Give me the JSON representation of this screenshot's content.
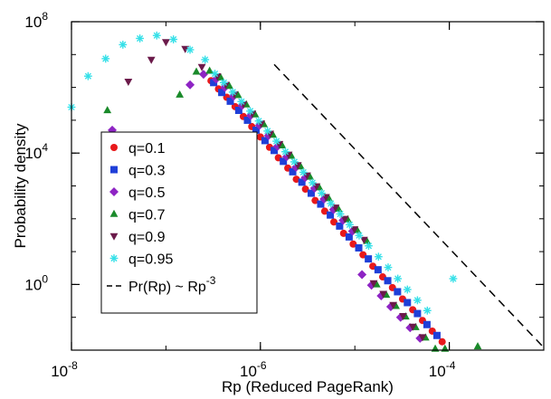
{
  "chart_data": {
    "type": "scatter",
    "xlabel": "Rp (Reduced PageRank)",
    "ylabel": "Probability density",
    "xscale": "log",
    "yscale": "log",
    "xlim": [
      1e-08,
      0.001
    ],
    "ylim": [
      0.01,
      100000000.0
    ],
    "xticks": [
      {
        "base": "10",
        "exp": "-8",
        "value": 1e-08
      },
      {
        "base": "10",
        "exp": "-6",
        "value": 1e-06
      },
      {
        "base": "10",
        "exp": "-4",
        "value": 0.0001
      }
    ],
    "yticks": [
      {
        "base": "10",
        "exp": "0",
        "value": 1
      },
      {
        "base": "10",
        "exp": "4",
        "value": 10000.0
      },
      {
        "base": "10",
        "exp": "8",
        "value": 100000000.0
      }
    ],
    "legend_position": "left",
    "series": [
      {
        "name": "q=0.1",
        "marker": "circle",
        "color": "#e8191b",
        "points": [
          [
            3e-07,
            1600000.0
          ],
          [
            3.6e-07,
            900000.0
          ],
          [
            4.4e-07,
            500000.0
          ],
          [
            5.4e-07,
            260000.0
          ],
          [
            6.6e-07,
            130000.0
          ],
          [
            8.1e-07,
            64000.0
          ],
          [
            1e-06,
            31000.0
          ],
          [
            1.25e-06,
            15000.0
          ],
          [
            1.55e-06,
            7200.0
          ],
          [
            1.95e-06,
            3500.0
          ],
          [
            2.4e-06,
            1600.0
          ],
          [
            3e-06,
            800.0
          ],
          [
            3.8e-06,
            360.0
          ],
          [
            4.8e-06,
            170.0
          ],
          [
            6e-06,
            80.0
          ],
          [
            7.6e-06,
            36.0
          ],
          [
            9.6e-06,
            17.0
          ],
          [
            1.22e-05,
            8
          ],
          [
            1.55e-05,
            3.6
          ],
          [
            1.97e-05,
            1.7
          ],
          [
            2.5e-05,
            0.8
          ],
          [
            3.2e-05,
            0.36
          ],
          [
            4.1e-05,
            0.17
          ],
          [
            5.2e-05,
            0.08
          ],
          [
            6.6e-05,
            0.038
          ],
          [
            8.4e-05,
            0.018
          ]
        ]
      },
      {
        "name": "q=0.3",
        "marker": "square",
        "color": "#1f3fd8",
        "points": [
          [
            3.2e-07,
            1400000.0
          ],
          [
            3.9e-07,
            700000.0
          ],
          [
            4.8e-07,
            380000.0
          ],
          [
            5.9e-07,
            200000.0
          ],
          [
            7.3e-07,
            100000.0
          ],
          [
            9e-07,
            50000.0
          ],
          [
            1.12e-06,
            24000.0
          ],
          [
            1.4e-06,
            12000.0
          ],
          [
            1.75e-06,
            5600.0
          ],
          [
            2.2e-06,
            2700.0
          ],
          [
            2.75e-06,
            1300.0
          ],
          [
            3.45e-06,
            600.0
          ],
          [
            4.35e-06,
            280.0
          ],
          [
            5.5e-06,
            130.0
          ],
          [
            6.9e-06,
            60.0
          ],
          [
            8.7e-06,
            28.0
          ],
          [
            1.1e-05,
            13.0
          ],
          [
            1.39e-05,
            6
          ],
          [
            1.76e-05,
            2.8
          ],
          [
            2.23e-05,
            1.3
          ],
          [
            2.83e-05,
            0.6
          ],
          [
            3.6e-05,
            0.28
          ],
          [
            4.6e-05,
            0.13
          ],
          [
            5.8e-05,
            0.06
          ],
          [
            7.4e-05,
            0.028
          ]
        ]
      },
      {
        "name": "q=0.5",
        "marker": "diamond",
        "color": "#8e24c4",
        "points": [
          [
            2.7e-08,
            50000.0
          ],
          [
            1.8e-07,
            1200000.0
          ],
          [
            2.5e-07,
            2500000.0
          ],
          [
            3.4e-07,
            1800000.0
          ],
          [
            4.2e-07,
            1000000.0
          ],
          [
            5.2e-07,
            540000.0
          ],
          [
            6.4e-07,
            280000.0
          ],
          [
            7.9e-07,
            140000.0
          ],
          [
            9.8e-07,
            70000.0
          ],
          [
            1.22e-06,
            34000.0
          ],
          [
            1.52e-06,
            16000.0
          ],
          [
            1.9e-06,
            7800.0
          ],
          [
            2.38e-06,
            3700.0
          ],
          [
            2.98e-06,
            1800.0
          ],
          [
            3.75e-06,
            850.0
          ],
          [
            4.72e-06,
            400.0
          ],
          [
            5.95e-06,
            190.0
          ],
          [
            7.5e-06,
            90.0
          ],
          [
            9.45e-06,
            42.0
          ],
          [
            1.19e-05,
            2
          ],
          [
            1.5e-05,
            0.95
          ],
          [
            1.9e-05,
            0.45
          ],
          [
            2.4e-05,
            0.21
          ],
          [
            3.05e-05,
            0.1
          ],
          [
            3.85e-05,
            0.048
          ],
          [
            4.9e-05,
            0.023
          ]
        ]
      },
      {
        "name": "q=0.7",
        "marker": "triangle-up",
        "color": "#1a8a2a",
        "points": [
          [
            2.4e-08,
            200000.0
          ],
          [
            1.4e-07,
            600000.0
          ],
          [
            2.1e-07,
            3000000.0
          ],
          [
            2.9e-07,
            3200000.0
          ],
          [
            3.8e-07,
            2000000.0
          ],
          [
            4.7e-07,
            1100000.0
          ],
          [
            5.8e-07,
            580000.0
          ],
          [
            7.1e-07,
            300000.0
          ],
          [
            8.8e-07,
            150000.0
          ],
          [
            1.09e-06,
            75000.0
          ],
          [
            1.36e-06,
            36000.0
          ],
          [
            1.7e-06,
            17000.0
          ],
          [
            2.13e-06,
            8200.0
          ],
          [
            2.67e-06,
            3900.0
          ],
          [
            3.35e-06,
            1900.0
          ],
          [
            4.2e-06,
            900.0
          ],
          [
            5.3e-06,
            420.0
          ],
          [
            6.7e-06,
            200.0
          ],
          [
            8.4e-06,
            95.0
          ],
          [
            1.06e-05,
            45.0
          ],
          [
            1.34e-05,
            21.0
          ],
          [
            1.7e-05,
            1
          ],
          [
            2.15e-05,
            0.48
          ],
          [
            2.72e-05,
            0.22
          ],
          [
            3.45e-05,
            0.105
          ],
          [
            4.4e-05,
            0.05
          ],
          [
            5.6e-05,
            0.024
          ],
          [
            7.1e-05,
            0.011
          ],
          [
            9e-05,
            0.011
          ],
          [
            0.0002,
            0.013
          ]
        ]
      },
      {
        "name": "q=0.9",
        "marker": "triangle-down",
        "color": "#6b1a4a",
        "points": [
          [
            4e-08,
            1500000.0
          ],
          [
            7e-08,
            7000000.0
          ],
          [
            1e-07,
            24000000.0
          ],
          [
            1.6e-07,
            15000000.0
          ],
          [
            2.4e-07,
            4200000.0
          ],
          [
            3.5e-07,
            2200000.0
          ],
          [
            4.3e-07,
            1200000.0
          ],
          [
            5.3e-07,
            620000.0
          ],
          [
            6.6e-07,
            310000.0
          ],
          [
            8.2e-07,
            160000.0
          ],
          [
            1.02e-06,
            80000.0
          ],
          [
            1.27e-06,
            39000.0
          ],
          [
            1.59e-06,
            19000.0
          ],
          [
            1.99e-06,
            9000.0
          ],
          [
            2.49e-06,
            4300.0
          ],
          [
            3.12e-06,
            2100.0
          ],
          [
            3.93e-06,
            980.0
          ],
          [
            4.95e-06,
            460.0
          ],
          [
            6.24e-06,
            220.0
          ],
          [
            7.85e-06,
            100.0
          ],
          [
            9.9e-06,
            48.0
          ],
          [
            1.25e-05,
            23.0
          ],
          [
            1.58e-05,
            1.1
          ],
          [
            2e-05,
            0.52
          ],
          [
            2.55e-05,
            0.24
          ],
          [
            3.24e-05,
            0.11
          ],
          [
            4.1e-05,
            0.052
          ],
          [
            5.2e-05,
            0.025
          ]
        ]
      },
      {
        "name": "q=0.95",
        "marker": "asterisk",
        "color": "#35e0e8",
        "points": [
          [
            1e-08,
            250000.0
          ],
          [
            1.5e-08,
            2200000.0
          ],
          [
            2.3e-08,
            7500000.0
          ],
          [
            3.5e-08,
            20000000.0
          ],
          [
            5.3e-08,
            31000000.0
          ],
          [
            8e-08,
            38000000.0
          ],
          [
            1.2e-07,
            29000000.0
          ],
          [
            1.8e-07,
            14000000.0
          ],
          [
            2.6e-07,
            7000000.0
          ],
          [
            3.3e-07,
            2600000.0
          ],
          [
            4.1e-07,
            1400000.0
          ],
          [
            5.1e-07,
            720000.0
          ],
          [
            6.3e-07,
            370000.0
          ],
          [
            7.8e-07,
            190000.0
          ],
          [
            9.6e-07,
            95000.0
          ],
          [
            1.19e-06,
            47000.0
          ],
          [
            1.48e-06,
            23000.0
          ],
          [
            1.84e-06,
            11000.0
          ],
          [
            2.29e-06,
            5400.0
          ],
          [
            2.85e-06,
            2600.0
          ],
          [
            3.56e-06,
            1250.0
          ],
          [
            4.45e-06,
            600.0
          ],
          [
            5.58e-06,
            290.0
          ],
          [
            7e-06,
            140.0
          ],
          [
            8.8e-06,
            66.0
          ],
          [
            1.11e-05,
            31.0
          ],
          [
            1.4e-05,
            15.0
          ],
          [
            1.78e-05,
            7
          ],
          [
            2.25e-05,
            3.3
          ],
          [
            2.85e-05,
            1.5
          ],
          [
            3.6e-05,
            0.7
          ],
          [
            4.6e-05,
            0.33
          ],
          [
            5.85e-05,
            0.16
          ],
          [
            0.00011,
            1.5
          ]
        ]
      }
    ],
    "reference_line": {
      "name": "Pr(Rp) ~ Rp",
      "name_sup": "-3",
      "style": "dashed",
      "exponent": -3,
      "points": [
        [
          1.4e-06,
          5000000.0
        ],
        [
          0.001,
          0.012
        ]
      ]
    }
  }
}
